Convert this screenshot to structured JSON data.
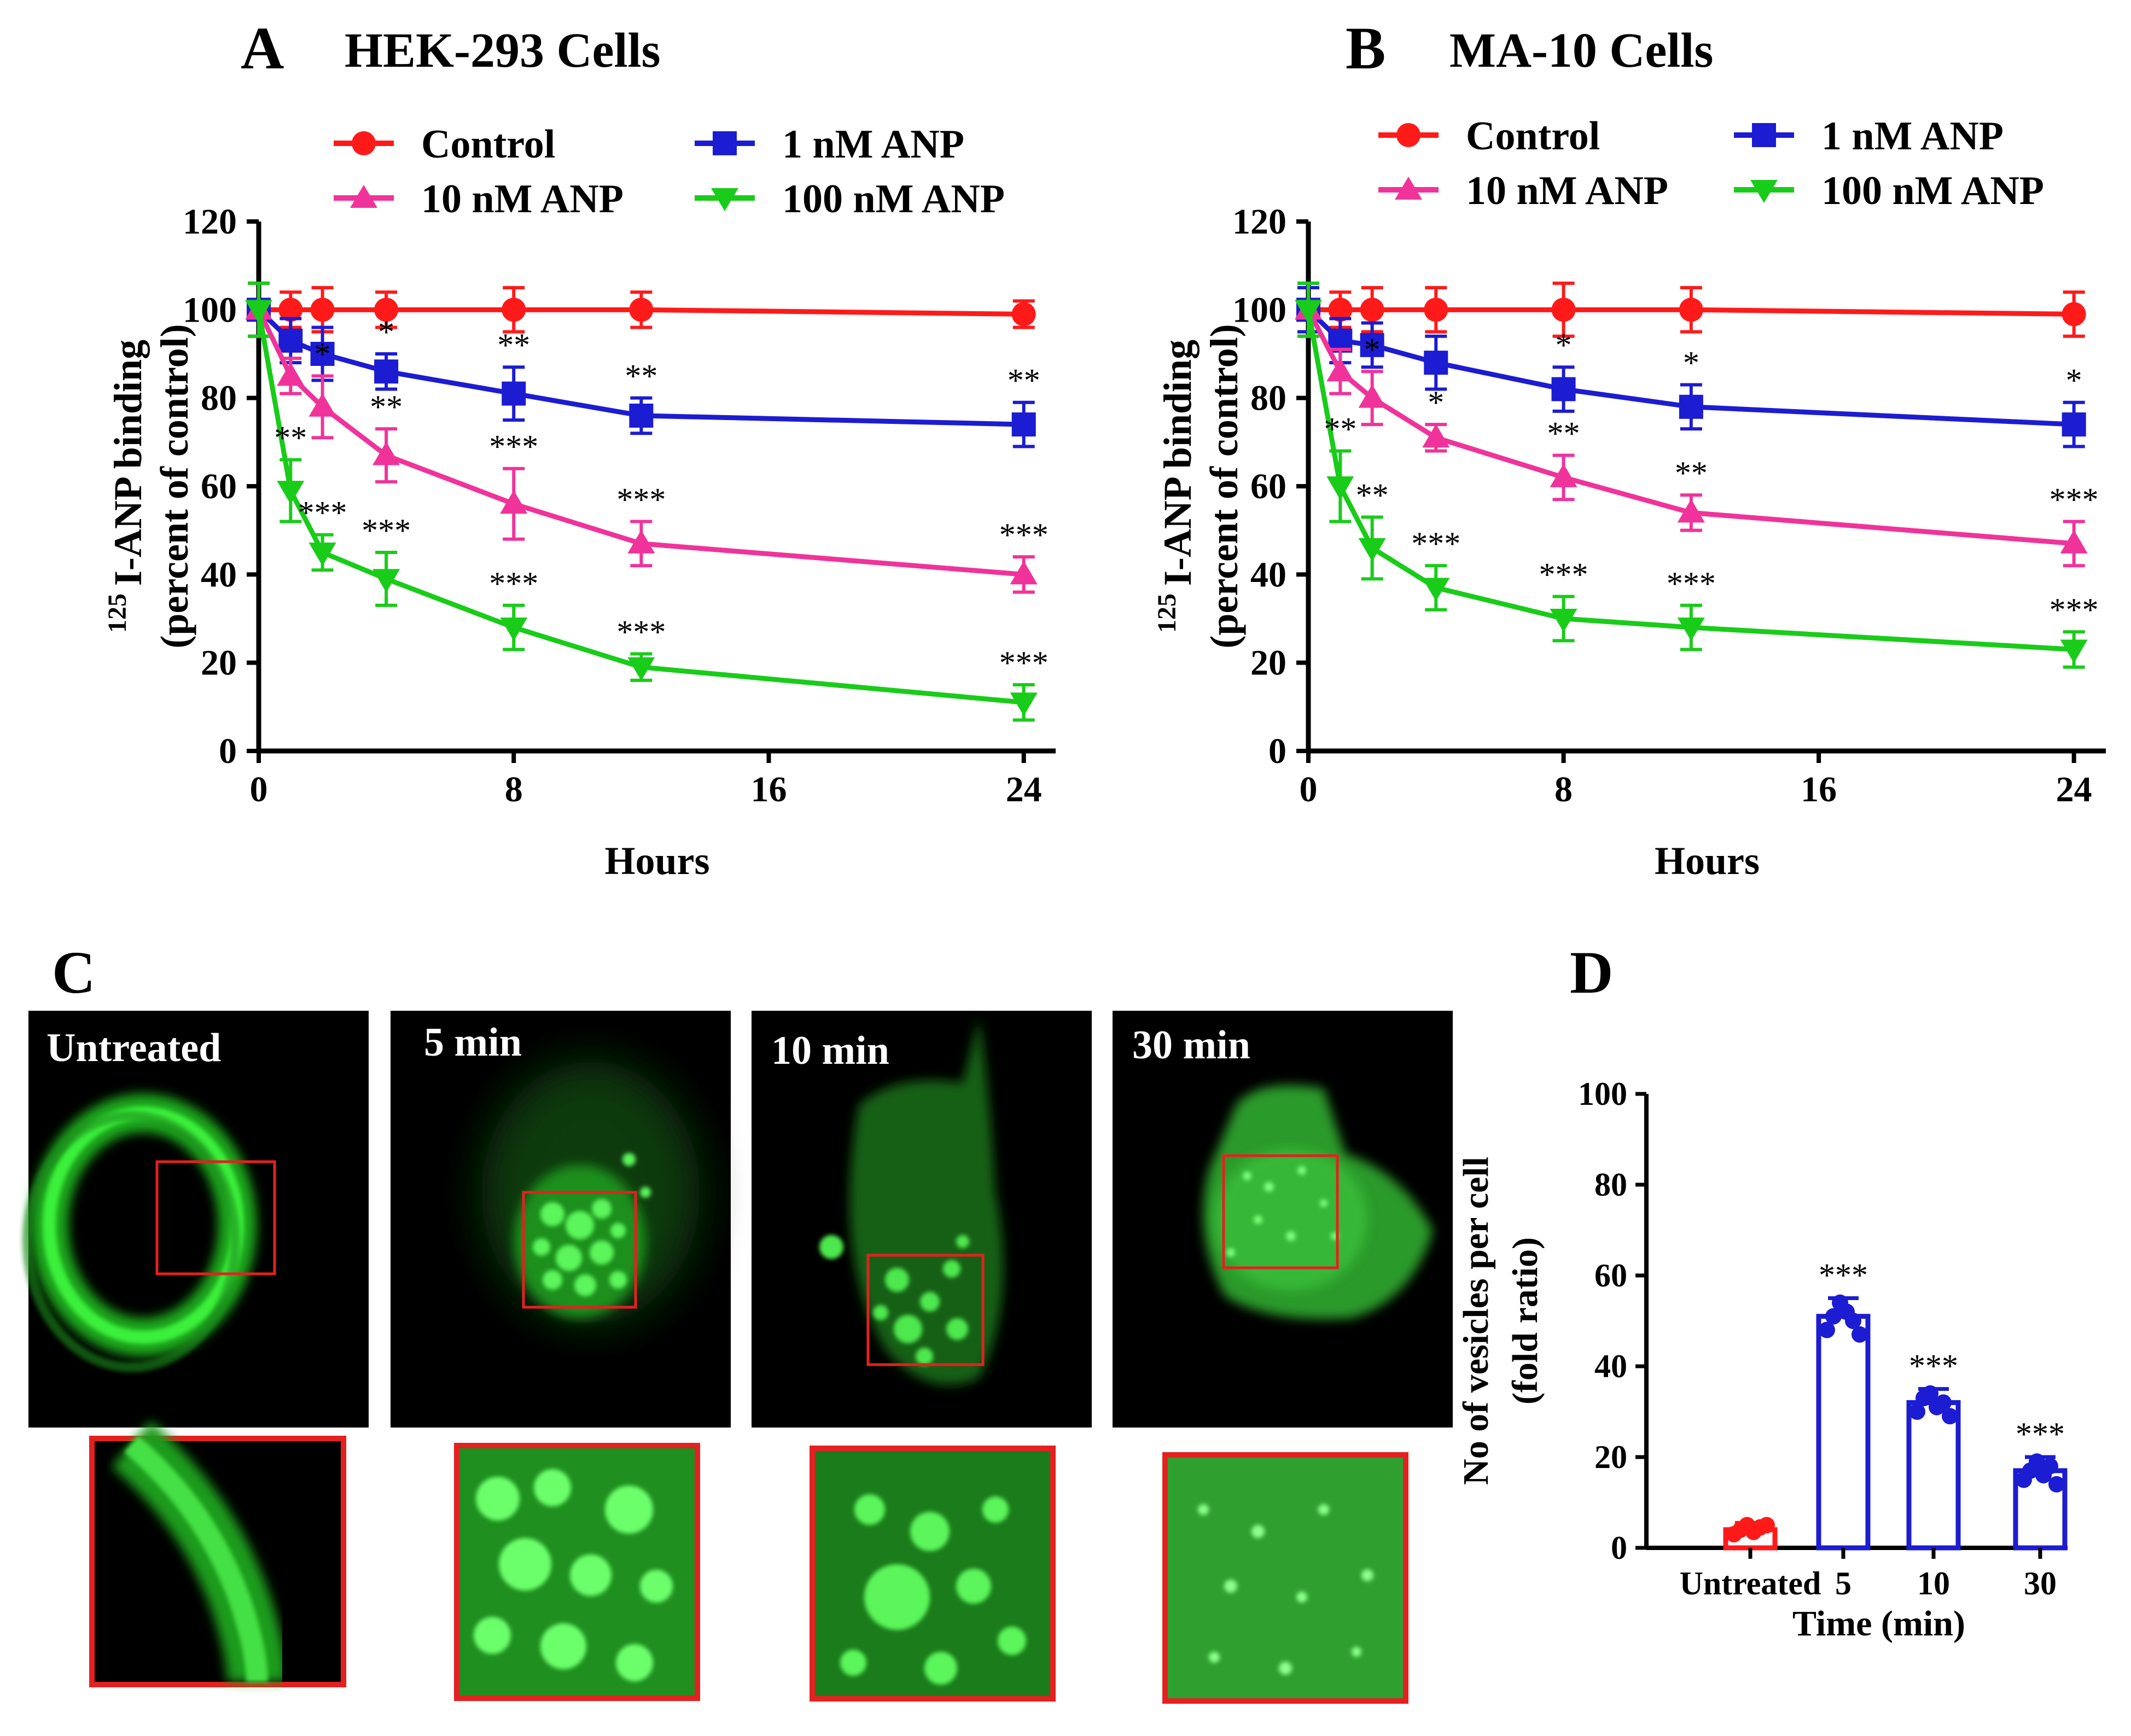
{
  "panels": {
    "A": {
      "letter": "A",
      "title": "HEK-293 Cells"
    },
    "B": {
      "letter": "B",
      "title": "MA-10 Cells"
    },
    "C": {
      "letter": "C"
    },
    "D": {
      "letter": "D"
    }
  },
  "legend": [
    {
      "label": "Control",
      "color": "#ff1a1a",
      "marker": "circle"
    },
    {
      "label": "1 nM ANP",
      "color": "#1c1cd2",
      "marker": "square"
    },
    {
      "label": "10 nM ANP",
      "color": "#f0339a",
      "marker": "triangle-up"
    },
    {
      "label": "100 nM ANP",
      "color": "#19cc19",
      "marker": "triangle-down"
    }
  ],
  "microscopy": {
    "labels": [
      "Untreated",
      "5 min",
      "10 min",
      "30 min"
    ],
    "icons": [
      "membrane-fluorescence-icon",
      "vesicle-fluorescence-icon",
      "vesicle-fluorescence-icon",
      "diffuse-fluorescence-icon"
    ]
  },
  "chart_data": [
    {
      "panel": "A",
      "type": "line",
      "title": "HEK-293 Cells",
      "xlabel": "Hours",
      "ylabel_line1": "125 I-ANP binding",
      "ylabel_line2": "(percent of control)",
      "ylabel_super": "125",
      "ylabel_main": "I-ANP binding",
      "xlim": [
        0,
        25
      ],
      "ylim": [
        0,
        120
      ],
      "xticks": [
        0,
        8,
        16,
        24
      ],
      "yticks": [
        0,
        20,
        40,
        60,
        80,
        100,
        120
      ],
      "x": [
        0,
        1,
        2,
        4,
        8,
        12,
        24
      ],
      "series": [
        {
          "name": "Control",
          "values": [
            100,
            100,
            100,
            100,
            100,
            100,
            99
          ],
          "errors": [
            6,
            4,
            5,
            4,
            5,
            4,
            3
          ],
          "stars": [
            "",
            "",
            "",
            "",
            "",
            "",
            ""
          ]
        },
        {
          "name": "1 nM ANP",
          "values": [
            100,
            93,
            90,
            86,
            81,
            76,
            74
          ],
          "errors": [
            6,
            5,
            6,
            4,
            6,
            4,
            5
          ],
          "stars": [
            "",
            "",
            "",
            "*",
            "**",
            "**",
            "**"
          ]
        },
        {
          "name": "10 nM ANP",
          "values": [
            100,
            85,
            78,
            67,
            56,
            47,
            40
          ],
          "errors": [
            6,
            4,
            7,
            6,
            8,
            5,
            4
          ],
          "stars": [
            "",
            "",
            "*",
            "**",
            "***",
            "***",
            "***"
          ]
        },
        {
          "name": "100 nM ANP",
          "values": [
            100,
            59,
            45,
            39,
            28,
            19,
            11
          ],
          "errors": [
            6,
            7,
            4,
            6,
            5,
            3,
            4
          ],
          "stars": [
            "",
            "**",
            "***",
            "***",
            "***",
            "***",
            "***"
          ]
        }
      ]
    },
    {
      "panel": "B",
      "type": "line",
      "title": "MA-10 Cells",
      "xlabel": "Hours",
      "ylabel_line1": "125 I-ANP binding",
      "ylabel_line2": "(percent of control)",
      "ylabel_super": "125",
      "ylabel_main": "I-ANP binding",
      "xlim": [
        0,
        25
      ],
      "ylim": [
        0,
        120
      ],
      "xticks": [
        0,
        8,
        16,
        24
      ],
      "yticks": [
        0,
        20,
        40,
        60,
        80,
        100,
        120
      ],
      "x": [
        0,
        1,
        2,
        4,
        8,
        12,
        24
      ],
      "series": [
        {
          "name": "Control",
          "values": [
            100,
            100,
            100,
            100,
            100,
            100,
            99
          ],
          "errors": [
            6,
            4,
            5,
            5,
            6,
            5,
            5
          ],
          "stars": [
            "",
            "",
            "",
            "",
            "",
            "",
            ""
          ]
        },
        {
          "name": "1 nM ANP",
          "values": [
            100,
            93,
            92,
            88,
            82,
            78,
            74
          ],
          "errors": [
            5,
            5,
            5,
            6,
            5,
            5,
            5
          ],
          "stars": [
            "",
            "",
            "",
            "",
            "*",
            "*",
            "*"
          ]
        },
        {
          "name": "10 nM ANP",
          "values": [
            100,
            86,
            80,
            71,
            62,
            54,
            47
          ],
          "errors": [
            6,
            5,
            6,
            3,
            5,
            4,
            5
          ],
          "stars": [
            "",
            "",
            "*",
            "*",
            "**",
            "**",
            "***"
          ]
        },
        {
          "name": "100 nM ANP",
          "values": [
            100,
            60,
            46,
            37,
            30,
            28,
            23
          ],
          "errors": [
            6,
            8,
            7,
            5,
            5,
            5,
            4
          ],
          "stars": [
            "",
            "**",
            "**",
            "***",
            "***",
            "***",
            "***"
          ]
        }
      ]
    },
    {
      "panel": "D",
      "type": "bar",
      "xlabel": "Time (min)",
      "ylabel_line1": "No of vesicles per cell",
      "ylabel_line2": "(fold ratio)",
      "ylim": [
        0,
        100
      ],
      "yticks": [
        0,
        20,
        40,
        60,
        80,
        100
      ],
      "categories": [
        "Untreated",
        "5",
        "10",
        "30"
      ],
      "values": [
        4,
        51,
        32,
        17
      ],
      "errors": [
        1.5,
        4,
        3,
        3
      ],
      "colors": [
        "#ff1a1a",
        "#1c1cd2",
        "#1c1cd2",
        "#1c1cd2"
      ],
      "points": [
        [
          3,
          4,
          5,
          3.5,
          4.5,
          5
        ],
        [
          48,
          51,
          54,
          52,
          50,
          47
        ],
        [
          30,
          33,
          34,
          31,
          32,
          29
        ],
        [
          15,
          17,
          19,
          16,
          18,
          14
        ]
      ],
      "stars": [
        "",
        "***",
        "***",
        "***"
      ]
    }
  ]
}
